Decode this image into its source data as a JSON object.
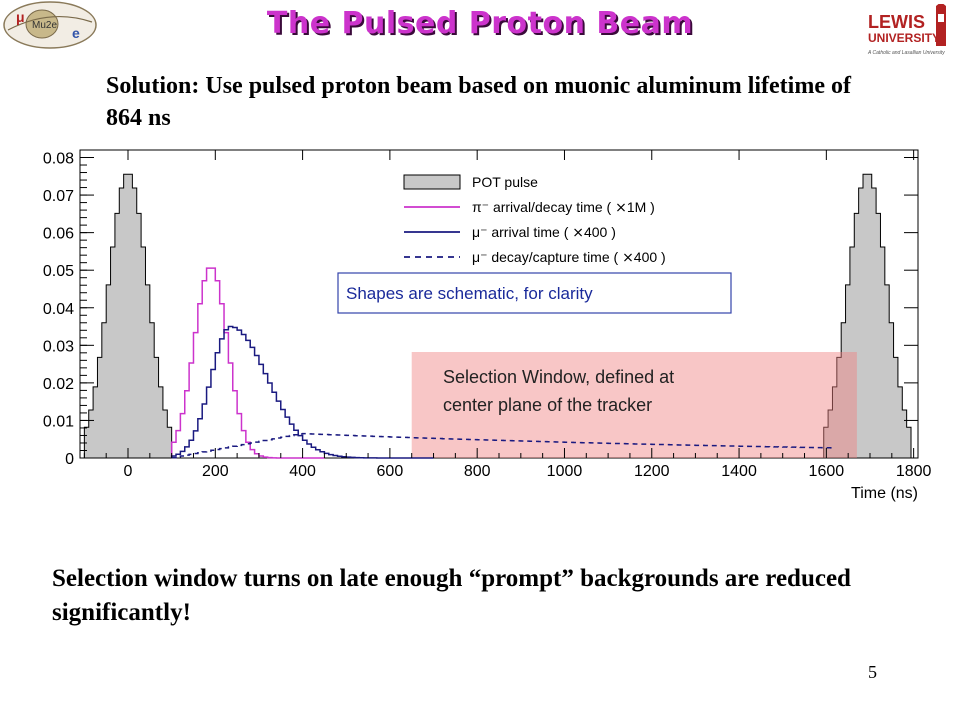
{
  "slide": {
    "title": "The Pulsed Proton Beam",
    "subtitle": "Solution: Use pulsed proton beam based on muonic aluminum lifetime of 864 ns",
    "conclusion": "Selection window turns on late enough “prompt” backgrounds are reduced significantly!",
    "page_number": "5",
    "logo_left": {
      "icon": "mu2e-logo",
      "text_mu": "μ",
      "text_mid": "Mu2e",
      "text_e": "e"
    },
    "logo_right": {
      "icon": "lewis-university-logo",
      "line1": "LEWIS",
      "line2": "UNIVERSITY",
      "tagline": "A Catholic and Lasallian University"
    }
  },
  "chart_data": {
    "type": "histogram",
    "xlabel": "Time (ns)",
    "xlim": [
      -110,
      1810
    ],
    "ylim": [
      0,
      0.082
    ],
    "x_ticks": [
      0,
      200,
      400,
      600,
      800,
      1000,
      1200,
      1400,
      1600,
      1800
    ],
    "y_ticks": [
      0,
      0.01,
      0.02,
      0.03,
      0.04,
      0.05,
      0.06,
      0.07,
      0.08
    ],
    "y_tick_labels": [
      "0",
      "0.01",
      "0.02",
      "0.03",
      "0.04",
      "0.05",
      "0.06",
      "0.07",
      "0.08"
    ],
    "legend": [
      {
        "label": "POT pulse",
        "style": "filled",
        "color": "#c8c8c8"
      },
      {
        "label": "π⁻ arrival/decay time ( ⨯1M )",
        "style": "solid",
        "color": "#cc33cc"
      },
      {
        "label": "μ⁻ arrival time ( ⨯400 )",
        "style": "solid",
        "color": "#1a1a80"
      },
      {
        "label": "μ⁻ decay/capture time ( ⨯400 )",
        "style": "dashed",
        "color": "#1a1a80"
      }
    ],
    "series": [
      {
        "name": "POT pulse",
        "kind": "gaussian",
        "center": 0,
        "sigma": 45,
        "peak": 0.076,
        "period": 1694
      },
      {
        "name": "π⁻ arrival/decay time",
        "kind": "gaussian",
        "center": 190,
        "sigma": 38,
        "peak": 0.051
      },
      {
        "name": "μ⁻ arrival time",
        "kind": "skewed",
        "center": 235,
        "sigma_left": 45,
        "sigma_right": 85,
        "peak": 0.035
      },
      {
        "name": "μ⁻ decay/capture time",
        "kind": "decay",
        "onset": 100,
        "peak_x": 400,
        "peak": 0.0065,
        "lifetime_ns": 864
      }
    ],
    "annotations": {
      "shapes_note": "Shapes are schematic, for clarity",
      "selection_window": "Selection Window, defined at center plane of the tracker",
      "selection_range": [
        650,
        1670
      ]
    },
    "colors": {
      "pot_fill": "#c8c8c8",
      "pion": "#cc33cc",
      "muon": "#1a1a80",
      "window": "#f08080"
    }
  }
}
